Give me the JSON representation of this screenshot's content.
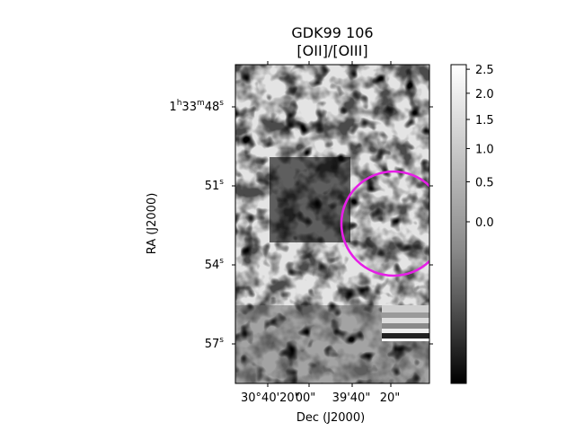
{
  "chart_data": {
    "type": "heatmap",
    "title": "GDK99 106",
    "subtitle": "[OII]/[OIII]",
    "xlabel": "Dec (J2000)",
    "ylabel": "RA (J2000)",
    "x_ticks": [
      "30°40'20\"",
      "00\"",
      "39'40\"",
      "20\""
    ],
    "y_ticks": [
      {
        "major": "1",
        "sup1": "h",
        "mid": "33",
        "sup2": "m",
        "num": "48",
        "sup3": "s"
      },
      {
        "major": "",
        "sup1": "",
        "mid": "",
        "sup2": "",
        "num": "51",
        "sup3": "s"
      },
      {
        "major": "",
        "sup1": "",
        "mid": "",
        "sup2": "",
        "num": "54",
        "sup3": "s"
      },
      {
        "major": "",
        "sup1": "",
        "mid": "",
        "sup2": "",
        "num": "57",
        "sup3": "s"
      }
    ],
    "colormap": "gray",
    "colorbar": {
      "ticks": [
        "2.5",
        "2.0",
        "1.5",
        "1.0",
        "0.5",
        "0.0"
      ],
      "tick_values": [
        2.5,
        2.0,
        1.5,
        1.0,
        0.5,
        0.0
      ],
      "range": [
        -0.9,
        2.6
      ],
      "scale": "nonlinear (sqrt-like stretch)"
    },
    "overlay": {
      "shape": "circle",
      "color": "#e61ee6"
    }
  }
}
